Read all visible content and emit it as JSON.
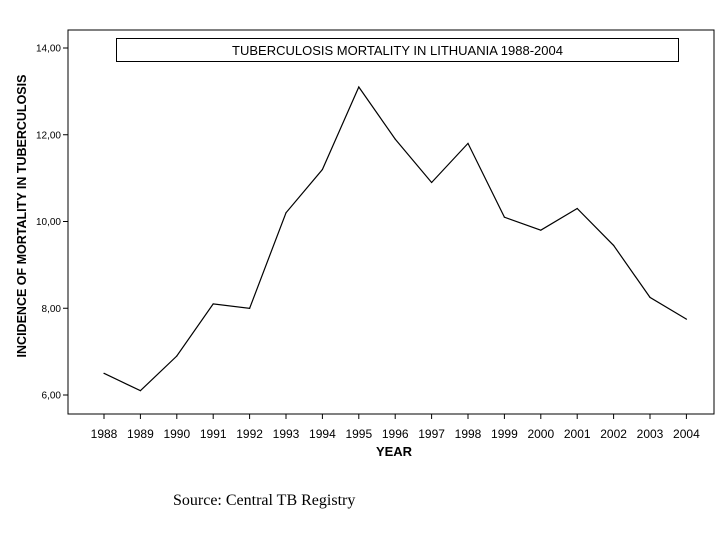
{
  "chart_data": {
    "type": "line",
    "title": "TUBERCULOSIS MORTALITY IN LITHUANIA 1988-2004",
    "xlabel": "YEAR",
    "ylabel": "INCIDENCE OF MORTALITY IN TUBERCULOSIS",
    "categories": [
      "1988",
      "1989",
      "1990",
      "1991",
      "1992",
      "1993",
      "1994",
      "1995",
      "1996",
      "1997",
      "1998",
      "1999",
      "2000",
      "2001",
      "2002",
      "2003",
      "2004"
    ],
    "series": [
      {
        "values": [
          6.5,
          6.1,
          6.9,
          8.1,
          8.0,
          10.2,
          11.2,
          13.1,
          11.9,
          10.9,
          11.8,
          10.1,
          9.8,
          10.3,
          9.45,
          8.25,
          7.75
        ]
      }
    ],
    "ylim": [
      5.8,
      14.0
    ],
    "yticks": [
      6,
      8,
      10,
      12,
      14
    ],
    "ytick_labels": [
      "6,00",
      "8,00",
      "10,00",
      "12,00",
      "14,00"
    ],
    "grid": false,
    "line_color": "#000000"
  },
  "source": "Source: Central TB Registry"
}
